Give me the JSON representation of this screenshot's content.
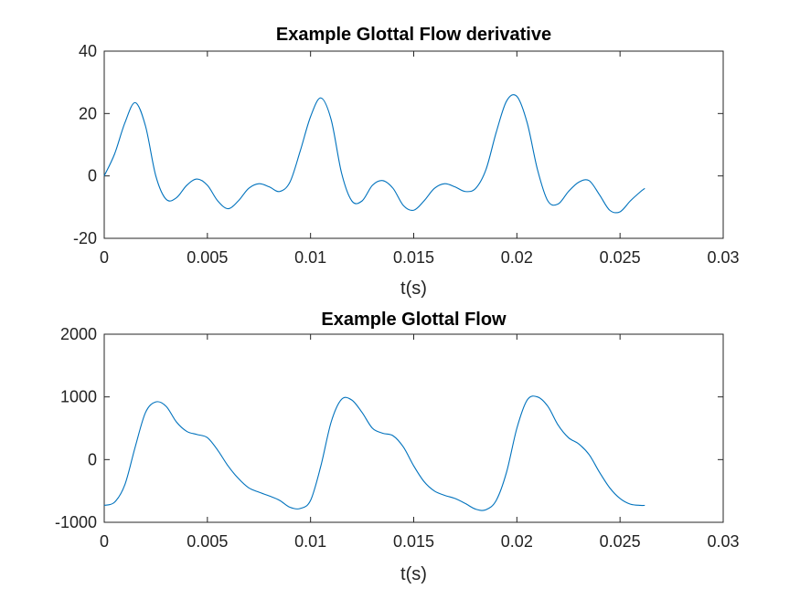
{
  "chart_data": [
    {
      "type": "line",
      "title": "Example Glottal Flow derivative",
      "xlabel": "t(s)",
      "ylabel": "",
      "xlim": [
        0,
        0.03
      ],
      "ylim": [
        -20,
        40
      ],
      "xticks": [
        0,
        0.005,
        0.01,
        0.015,
        0.02,
        0.025,
        0.03
      ],
      "xtick_labels": [
        "0",
        "0.005",
        "0.01",
        "0.015",
        "0.02",
        "0.025",
        "0.03"
      ],
      "yticks": [
        -20,
        0,
        20,
        40
      ],
      "ytick_labels": [
        "-20",
        "0",
        "20",
        "40"
      ],
      "grid": false,
      "series": [
        {
          "color": "#0072BD",
          "x": [
            0,
            0.0005,
            0.001,
            0.0015,
            0.002,
            0.0025,
            0.003,
            0.0035,
            0.004,
            0.0045,
            0.005,
            0.0055,
            0.006,
            0.0065,
            0.007,
            0.0075,
            0.008,
            0.0085,
            0.009,
            0.0095,
            0.01,
            0.0105,
            0.011,
            0.0115,
            0.012,
            0.0125,
            0.013,
            0.0135,
            0.014,
            0.0145,
            0.015,
            0.0155,
            0.016,
            0.0165,
            0.017,
            0.0175,
            0.018,
            0.0185,
            0.019,
            0.0195,
            0.02,
            0.0205,
            0.021,
            0.0215,
            0.022,
            0.0225,
            0.023,
            0.0235,
            0.024,
            0.0245,
            0.025,
            0.0255,
            0.026,
            0.0262
          ],
          "y": [
            0,
            7,
            17,
            23.5,
            16,
            0,
            -7.5,
            -7,
            -3,
            -1,
            -3,
            -8,
            -10.5,
            -8,
            -4,
            -2.5,
            -3.5,
            -5,
            -2,
            8,
            19,
            25,
            18,
            1,
            -8,
            -8,
            -3,
            -1.5,
            -4,
            -9.5,
            -11,
            -8,
            -4,
            -2.5,
            -3.5,
            -5,
            -4,
            2,
            14,
            24,
            25.5,
            17,
            2,
            -8,
            -9,
            -5,
            -2,
            -1.5,
            -6,
            -11,
            -11.5,
            -8,
            -5,
            -4
          ]
        }
      ]
    },
    {
      "type": "line",
      "title": "Example Glottal Flow",
      "xlabel": "t(s)",
      "ylabel": "",
      "xlim": [
        0,
        0.03
      ],
      "ylim": [
        -1000,
        2000
      ],
      "xticks": [
        0,
        0.005,
        0.01,
        0.015,
        0.02,
        0.025,
        0.03
      ],
      "xtick_labels": [
        "0",
        "0.005",
        "0.01",
        "0.015",
        "0.02",
        "0.025",
        "0.03"
      ],
      "yticks": [
        -1000,
        0,
        1000,
        2000
      ],
      "ytick_labels": [
        "-1000",
        "0",
        "1000",
        "2000"
      ],
      "grid": false,
      "series": [
        {
          "color": "#0072BD",
          "x": [
            0,
            0.0005,
            0.001,
            0.0015,
            0.002,
            0.0025,
            0.003,
            0.0035,
            0.004,
            0.0045,
            0.005,
            0.0055,
            0.006,
            0.0065,
            0.007,
            0.0075,
            0.008,
            0.0085,
            0.009,
            0.0095,
            0.01,
            0.0105,
            0.011,
            0.0115,
            0.012,
            0.0125,
            0.013,
            0.0135,
            0.014,
            0.0145,
            0.015,
            0.0155,
            0.016,
            0.0165,
            0.017,
            0.0175,
            0.018,
            0.0185,
            0.019,
            0.0195,
            0.02,
            0.0205,
            0.021,
            0.0215,
            0.022,
            0.0225,
            0.023,
            0.0235,
            0.024,
            0.0245,
            0.025,
            0.0255,
            0.026,
            0.0262
          ],
          "y": [
            -730,
            -680,
            -400,
            200,
            750,
            920,
            850,
            600,
            450,
            400,
            350,
            150,
            -100,
            -300,
            -450,
            -520,
            -580,
            -650,
            -760,
            -780,
            -650,
            -100,
            600,
            960,
            950,
            750,
            500,
            420,
            380,
            200,
            -100,
            -350,
            -500,
            -570,
            -620,
            -700,
            -790,
            -800,
            -650,
            -200,
            500,
            950,
            1000,
            850,
            550,
            350,
            250,
            80,
            -200,
            -450,
            -620,
            -710,
            -730,
            -730
          ]
        }
      ]
    }
  ]
}
